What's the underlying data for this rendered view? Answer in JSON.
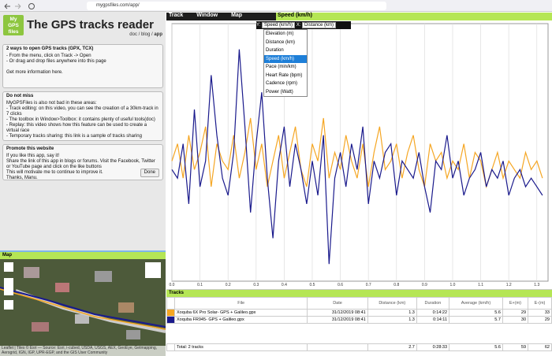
{
  "browser": {
    "url": "mygpsfiles.com/app/"
  },
  "header": {
    "logo": [
      "My",
      "GPS",
      "files"
    ],
    "title": "The GPS tracks reader",
    "links": [
      "doc",
      "blog",
      "app"
    ]
  },
  "panels": [
    {
      "title": "2 ways to open GPS tracks (GPX, TCX)",
      "lines": [
        "- From the menu, click on Track -> Open",
        "- Or drag and drop files anywhere into this page",
        "",
        "Get more information here."
      ]
    },
    {
      "title": "Do not miss",
      "lines": [
        "MyGPSFiles is also not bad in these areas:",
        "- Track editing: on this video, you can see the creation of a 30km-track in 7 clicks",
        "- The toolbox in Window>Toolbox: it contains plenty of useful tools(doc)",
        "- Replay: this video shows how this feature can be used to create a virtual race",
        "- Temporary tracks sharing: this link is a sample of tracks sharing"
      ]
    },
    {
      "title": "Promote this website",
      "lines": [
        "If you like this app, say it!",
        "Share the link of this app in blogs or forums. Visit the Facebook, Twitter or YouTube page and click on the like buttons",
        "This will motivate me to continue to improve it.",
        "Thanks, Manu."
      ],
      "button": "Done"
    }
  ],
  "map": {
    "title": "Map",
    "attribution": "Leaflet | Tiles © Esri — Source: Esri, i-cubed, USDA, USGS, AEX, GeoEye, Getmapping, Aerogrid, IGN, IGP, UPR-EGP, and the GIS User Community"
  },
  "menu": [
    "Track",
    "Window",
    "Map"
  ],
  "graph_controls": {
    "y_label": "Y:",
    "y_value": "Speed (km/h)",
    "x_label": "X:",
    "x_value": "Distance (km)",
    "options": [
      "Elevation (m)",
      "Distance (km)",
      "Duration",
      "Speed (km/h)",
      "Pace (min/km)",
      "Heart Rate (bpm)",
      "Cadence (rpm)",
      "Power (Watt)"
    ]
  },
  "chart_data": {
    "type": "line",
    "title": "Speed (km/h)",
    "x": [
      0,
      0.02,
      0.04,
      0.06,
      0.08,
      0.1,
      0.12,
      0.14,
      0.16,
      0.18,
      0.2,
      0.22,
      0.24,
      0.26,
      0.28,
      0.3,
      0.32,
      0.34,
      0.36,
      0.38,
      0.4,
      0.42,
      0.44,
      0.46,
      0.48,
      0.5,
      0.52,
      0.54,
      0.56,
      0.58,
      0.6,
      0.62,
      0.64,
      0.66,
      0.68,
      0.7,
      0.72,
      0.74,
      0.76,
      0.78,
      0.8,
      0.82,
      0.84,
      0.86,
      0.88,
      0.9,
      0.92,
      0.94,
      0.96,
      0.98,
      1,
      1.02,
      1.04,
      1.06,
      1.08,
      1.1,
      1.12,
      1.14,
      1.16,
      1.18,
      1.2,
      1.22,
      1.24,
      1.26,
      1.28,
      1.3,
      1.32
    ],
    "series": [
      {
        "color": "#f5a623",
        "values": [
          14,
          16,
          12,
          17,
          13,
          15,
          18,
          11,
          16,
          14,
          13,
          17,
          12,
          15,
          19,
          13,
          16,
          11,
          14,
          17,
          12,
          15,
          18,
          13,
          11,
          16,
          14,
          19,
          12,
          15,
          13,
          17,
          14,
          12,
          16,
          11,
          15,
          18,
          13,
          14,
          16,
          12,
          15,
          17,
          13,
          11,
          16,
          14,
          15,
          12,
          14,
          13,
          16,
          12,
          15,
          14,
          11,
          13,
          15,
          12,
          14,
          13,
          12,
          15,
          13,
          14,
          12
        ]
      },
      {
        "color": "#1a1a8c",
        "values": [
          13,
          12,
          16,
          9,
          20,
          11,
          14,
          24,
          17,
          12,
          10,
          15,
          27,
          18,
          8,
          16,
          22,
          12,
          5,
          14,
          18,
          11,
          16,
          13,
          9,
          14,
          10,
          17,
          2,
          12,
          15,
          11,
          16,
          13,
          18,
          9,
          14,
          12,
          15,
          16,
          10,
          14,
          13,
          12,
          15,
          11,
          8,
          14,
          13,
          17,
          12,
          14,
          10,
          12,
          13,
          15,
          11,
          13,
          12,
          14,
          10,
          12,
          13,
          11,
          12,
          11,
          10
        ]
      }
    ],
    "xlim": [
      0,
      1.34
    ],
    "ylim": [
      0,
      30
    ],
    "xticks": [
      {
        "value": 0,
        "label": "0.0"
      },
      {
        "value": 0.1,
        "label": "0.1"
      },
      {
        "value": 0.2,
        "label": "0.2"
      },
      {
        "value": 0.3,
        "label": "0.3"
      },
      {
        "value": 0.4,
        "label": "0.4"
      },
      {
        "value": 0.5,
        "label": "0.5"
      },
      {
        "value": 0.6,
        "label": "0.6"
      },
      {
        "value": 0.7,
        "label": "0.7"
      },
      {
        "value": 0.8,
        "label": "0.8"
      },
      {
        "value": 0.9,
        "label": "0.9"
      },
      {
        "value": 1,
        "label": "1.0"
      },
      {
        "value": 1.1,
        "label": "1.1"
      },
      {
        "value": 1.2,
        "label": "1.2"
      },
      {
        "value": 1.3,
        "label": "1.3"
      }
    ],
    "grid": true
  },
  "tracks": {
    "title": "Tracks",
    "columns": [
      "File",
      "Date",
      "Distance (km)",
      "Duration",
      "Average (km/h)",
      "E+(m)",
      "E-(m)"
    ],
    "rows": [
      [
        "Xoquba 6X Pro Solar- GPS + Galileo.gpx",
        "31/12/2019 08:41",
        "1.3",
        "0:14:22",
        "5.6",
        "29",
        "33"
      ],
      [
        "Xoquba FR945- GPS + Galileo.gpx",
        "31/12/2019 08:41",
        "1.3",
        "0:14:11",
        "5.7",
        "30",
        "29"
      ]
    ],
    "total": [
      "Total: 2 tracks",
      "",
      "2.7",
      "0:28:33",
      "5.6",
      "59",
      "62"
    ]
  }
}
